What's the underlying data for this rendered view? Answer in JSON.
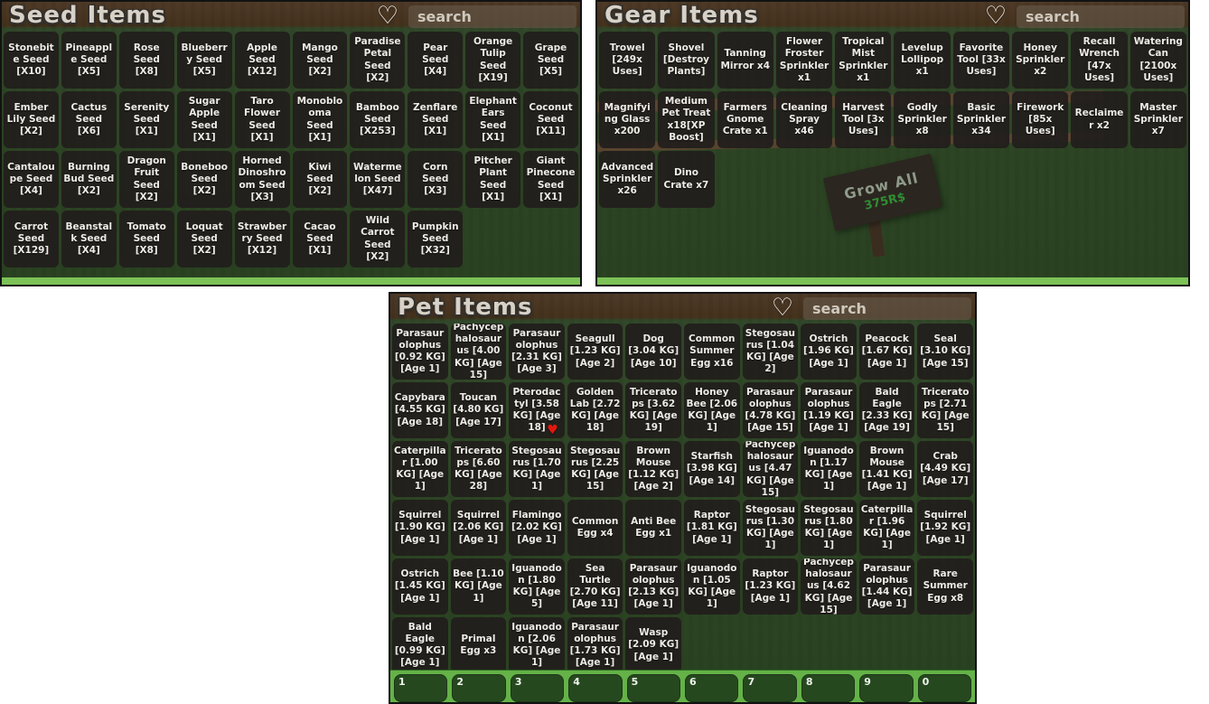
{
  "icons": {
    "favorites_heart": "♡",
    "favorite_heart": "♥"
  },
  "colors": {
    "favorite_heart": "#e3170d",
    "hotbar_green": "#64b248",
    "panel_grass": "#2c4423",
    "cell_background": "#211e1c",
    "grass_edge": "#7cc256"
  },
  "background_sign": {
    "line1": "Grow All",
    "line2": "375R$"
  },
  "hotbar": {
    "slots": [
      "1",
      "2",
      "3",
      "4",
      "5",
      "6",
      "7",
      "8",
      "9",
      "0"
    ]
  },
  "panels": [
    {
      "id": "seed",
      "title": "Seed Items",
      "search_placeholder": "search",
      "items": [
        {
          "label": "Stonebite Seed [X10]"
        },
        {
          "label": "Pineapple Seed [X5]"
        },
        {
          "label": "Rose Seed [X8]"
        },
        {
          "label": "Blueberry Seed [X5]"
        },
        {
          "label": "Apple Seed [X12]"
        },
        {
          "label": "Mango Seed [X2]"
        },
        {
          "label": "Paradise Petal Seed [X2]"
        },
        {
          "label": "Pear Seed [X4]"
        },
        {
          "label": "Orange Tulip Seed [X19]"
        },
        {
          "label": "Grape Seed [X5]"
        },
        {
          "label": "Ember Lily Seed [X2]"
        },
        {
          "label": "Cactus Seed [X6]"
        },
        {
          "label": "Serenity Seed [X1]"
        },
        {
          "label": "Sugar Apple Seed [X1]"
        },
        {
          "label": "Taro Flower Seed [X1]"
        },
        {
          "label": "Monoblooma Seed [X1]"
        },
        {
          "label": "Bamboo Seed [X253]"
        },
        {
          "label": "Zenflare Seed [X1]"
        },
        {
          "label": "Elephant Ears Seed [X1]"
        },
        {
          "label": "Coconut Seed [X11]"
        },
        {
          "label": "Cantaloupe Seed [X4]"
        },
        {
          "label": "Burning Bud Seed [X2]"
        },
        {
          "label": "Dragon Fruit Seed [X2]"
        },
        {
          "label": "Boneboo Seed [X2]"
        },
        {
          "label": "Horned Dinoshroom Seed [X3]"
        },
        {
          "label": "Kiwi Seed [X2]"
        },
        {
          "label": "Watermelon Seed [X47]"
        },
        {
          "label": "Corn Seed [X3]"
        },
        {
          "label": "Pitcher Plant Seed [X1]"
        },
        {
          "label": "Giant Pinecone Seed [X1]"
        },
        {
          "label": "Carrot Seed [X129]"
        },
        {
          "label": "Beanstalk Seed [X4]"
        },
        {
          "label": "Tomato Seed [X8]"
        },
        {
          "label": "Loquat Seed [X2]"
        },
        {
          "label": "Strawberry Seed [X12]"
        },
        {
          "label": "Cacao Seed [X1]"
        },
        {
          "label": "Wild Carrot Seed [X2]"
        },
        {
          "label": "Pumpkin Seed [X32]"
        }
      ]
    },
    {
      "id": "gear",
      "title": "Gear Items",
      "search_placeholder": "search",
      "items": [
        {
          "label": "Trowel [249x Uses]"
        },
        {
          "label": "Shovel [Destroy Plants]"
        },
        {
          "label": "Tanning Mirror x4"
        },
        {
          "label": "Flower Froster Sprinkler x1"
        },
        {
          "label": "Tropical Mist Sprinkler x1"
        },
        {
          "label": "Levelup Lollipop x1"
        },
        {
          "label": "Favorite Tool [33x Uses]"
        },
        {
          "label": "Honey Sprinkler x2"
        },
        {
          "label": "Recall Wrench [47x Uses]"
        },
        {
          "label": "Watering Can [2100x Uses]"
        },
        {
          "label": "Magnifying Glass x200"
        },
        {
          "label": "Medium Pet Treat x18[XP Boost]"
        },
        {
          "label": "Farmers Gnome Crate x1"
        },
        {
          "label": "Cleaning Spray x46"
        },
        {
          "label": "Harvest Tool [3x Uses]"
        },
        {
          "label": "Godly Sprinkler x8"
        },
        {
          "label": "Basic Sprinkler x34"
        },
        {
          "label": "Firework [85x Uses]"
        },
        {
          "label": "Reclaimer x2"
        },
        {
          "label": "Master Sprinkler x7"
        },
        {
          "label": "Advanced Sprinkler x26"
        },
        {
          "label": "Dino Crate x7"
        }
      ]
    },
    {
      "id": "pet",
      "title": "Pet Items",
      "search_placeholder": "search",
      "items": [
        {
          "label": "Parasaurolophus [0.92 KG] [Age 1]"
        },
        {
          "label": "Pachycephalosaurus [4.00 KG] [Age 15]"
        },
        {
          "label": "Parasaurolophus [2.31 KG] [Age 3]"
        },
        {
          "label": "Seagull [1.23 KG] [Age 2]"
        },
        {
          "label": "Dog [3.04 KG] [Age 10]"
        },
        {
          "label": "Common Summer Egg x16"
        },
        {
          "label": "Stegosaurus [1.04 KG] [Age 2]"
        },
        {
          "label": "Ostrich [1.96 KG] [Age 1]"
        },
        {
          "label": "Peacock [1.67 KG] [Age 1]"
        },
        {
          "label": "Seal [3.10 KG] [Age 15]"
        },
        {
          "label": "Capybara [4.55 KG] [Age 18]"
        },
        {
          "label": "Toucan [4.80 KG] [Age 17]"
        },
        {
          "label": "Pterodactyl [3.58 KG] [Age 18]",
          "favorite": true
        },
        {
          "label": "Golden Lab [2.72 KG] [Age 18]"
        },
        {
          "label": "Triceratops [3.62 KG] [Age 19]"
        },
        {
          "label": "Honey Bee [2.06 KG] [Age 1]"
        },
        {
          "label": "Parasaurolophus [4.78 KG] [Age 15]"
        },
        {
          "label": "Parasaurolophus [1.19 KG] [Age 1]"
        },
        {
          "label": "Bald Eagle [2.33 KG] [Age 19]"
        },
        {
          "label": "Triceratops [2.71 KG] [Age 15]"
        },
        {
          "label": "Caterpillar [1.00 KG] [Age 1]"
        },
        {
          "label": "Triceratops [6.60 KG] [Age 28]"
        },
        {
          "label": "Stegosaurus [1.70 KG] [Age 1]"
        },
        {
          "label": "Stegosaurus [2.25 KG] [Age 15]"
        },
        {
          "label": "Brown Mouse [1.12 KG] [Age 2]"
        },
        {
          "label": "Starfish [3.98 KG] [Age 14]"
        },
        {
          "label": "Pachycephalosaurus [4.47 KG] [Age 15]"
        },
        {
          "label": "Iguanodon [1.17 KG] [Age 1]"
        },
        {
          "label": "Brown Mouse [1.41 KG] [Age 1]"
        },
        {
          "label": "Crab [4.49 KG] [Age 17]"
        },
        {
          "label": "Squirrel [1.90 KG] [Age 1]"
        },
        {
          "label": "Squirrel [2.06 KG] [Age 1]"
        },
        {
          "label": "Flamingo [2.02 KG] [Age 1]"
        },
        {
          "label": "Common Egg x4"
        },
        {
          "label": "Anti Bee Egg x1"
        },
        {
          "label": "Raptor [1.81 KG] [Age 1]"
        },
        {
          "label": "Stegosaurus [1.30 KG] [Age 1]"
        },
        {
          "label": "Stegosaurus [1.80 KG] [Age 1]"
        },
        {
          "label": "Caterpillar [1.96 KG] [Age 1]"
        },
        {
          "label": "Squirrel [1.92 KG] [Age 1]"
        },
        {
          "label": "Ostrich [1.45 KG] [Age 1]"
        },
        {
          "label": "Bee [1.10 KG] [Age 1]"
        },
        {
          "label": "Iguanodon [1.80 KG] [Age 5]"
        },
        {
          "label": "Sea Turtle [2.70 KG] [Age 11]"
        },
        {
          "label": "Parasaurolophus [2.13 KG] [Age 1]"
        },
        {
          "label": "Iguanodon [1.05 KG] [Age 1]"
        },
        {
          "label": "Raptor [1.23 KG] [Age 1]"
        },
        {
          "label": "Pachycephalosaurus [4.62 KG] [Age 15]"
        },
        {
          "label": "Parasaurolophus [1.44 KG] [Age 1]"
        },
        {
          "label": "Rare Summer Egg x8"
        },
        {
          "label": "Bald Eagle [0.99 KG] [Age 1]"
        },
        {
          "label": "Primal Egg x3"
        },
        {
          "label": "Iguanodon [2.06 KG] [Age 1]"
        },
        {
          "label": "Parasaurolophus [1.73 KG] [Age 1]"
        },
        {
          "label": "Wasp [2.09 KG] [Age 1]"
        }
      ]
    }
  ]
}
